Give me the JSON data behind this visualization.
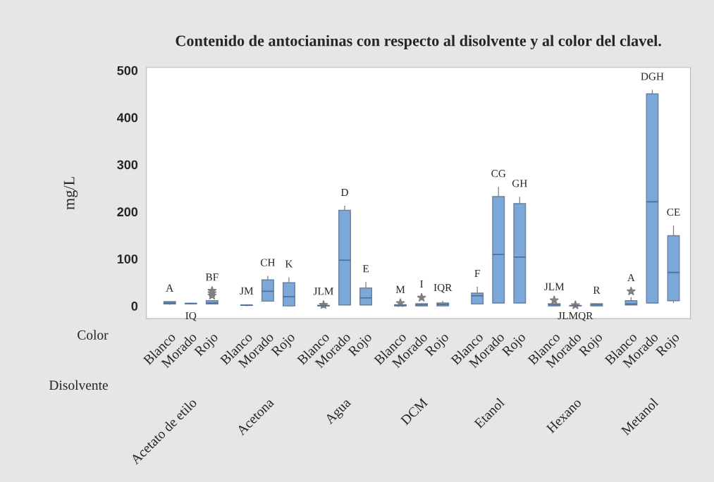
{
  "chart_data": {
    "type": "box",
    "title": "Contenido de antocianinas con respecto al disolvente y al color del clavel.",
    "ylabel": "mg/L",
    "categories": [
      "Blanco",
      "Morado",
      "Rojo",
      "Blanco",
      "Morado",
      "Rojo",
      "Blanco",
      "Morado",
      "Rojo",
      "Blanco",
      "Morado",
      "Rojo",
      "Blanco",
      "Morado",
      "Rojo",
      "Blanco",
      "Morado",
      "Rojo",
      "Blanco",
      "Morado",
      "Rojo"
    ],
    "color": "#7ba7d9",
    "boxes": [
      {
        "low": 3,
        "q1": 4,
        "median": 6,
        "q3": 9,
        "high": 9
      },
      {
        "low": 4,
        "q1": 4.5,
        "median": 5,
        "q3": 5.5,
        "high": 6
      },
      {
        "low": 4,
        "q1": 4,
        "median": 6,
        "q3": 11,
        "high": 11,
        "outliers": [
          22,
          27,
          32
        ]
      },
      {
        "low": 0,
        "q1": 1,
        "median": 1.5,
        "q3": 2,
        "high": 3
      },
      {
        "low": 10,
        "q1": 10,
        "median": 31,
        "q3": 55,
        "high": 63
      },
      {
        "low": 0,
        "q1": 0,
        "median": 19.5,
        "q3": 49,
        "high": 60
      },
      {
        "low": 0,
        "q1": 0,
        "median": 0.5,
        "q3": 1,
        "high": 1,
        "outliers": [
          2
        ]
      },
      {
        "low": 2,
        "q1": 2,
        "median": 97,
        "q3": 203,
        "high": 212
      },
      {
        "low": 2,
        "q1": 2,
        "median": 17,
        "q3": 38,
        "high": 50
      },
      {
        "low": 0,
        "q1": 0,
        "median": 1,
        "q3": 2.5,
        "high": 2.5,
        "outliers": [
          6
        ]
      },
      {
        "low": 0,
        "q1": 0,
        "median": 2,
        "q3": 4.5,
        "high": 4.5,
        "outliers": [
          17.5
        ]
      },
      {
        "low": 0,
        "q1": 0,
        "median": 3,
        "q3": 6,
        "high": 10
      },
      {
        "low": 4,
        "q1": 4,
        "median": 21.5,
        "q3": 27,
        "high": 40
      },
      {
        "low": 6,
        "q1": 6,
        "median": 109,
        "q3": 232,
        "high": 252
      },
      {
        "low": 6,
        "q1": 6,
        "median": 103.5,
        "q3": 217,
        "high": 231
      },
      {
        "low": 0,
        "q1": 0,
        "median": 2,
        "q3": 4.5,
        "high": 4.5,
        "outliers": [
          12
        ]
      },
      {
        "low": 0,
        "q1": 0,
        "median": 0.5,
        "q3": 1,
        "high": 1,
        "outliers": [
          1.5
        ]
      },
      {
        "low": 0,
        "q1": 0,
        "median": 2,
        "q3": 4.5,
        "high": 4.5
      },
      {
        "low": 2,
        "q1": 2,
        "median": 4,
        "q3": 11,
        "high": 18,
        "outliers": [
          31
        ]
      },
      {
        "low": 6,
        "q1": 6,
        "median": 221,
        "q3": 450,
        "high": 458
      },
      {
        "low": 7,
        "q1": 11,
        "median": 71,
        "q3": 149,
        "high": 170
      }
    ],
    "ylim": [
      -27,
      506
    ],
    "yticks": [
      0,
      100,
      200,
      300,
      400,
      500
    ],
    "grid": false,
    "value_labels": [
      "A",
      "IQ",
      "BF",
      "JM",
      "CH",
      "K",
      "JLM",
      "D",
      "E",
      "M",
      "I",
      "IQR",
      "F",
      "CG",
      "GH",
      "JLM",
      "JLMQR",
      "R",
      "A",
      "DGH",
      "CE"
    ],
    "annotations": [
      "Color",
      "Disolvente",
      "Acetato de etilo",
      "Acetona",
      "Agua",
      "DCM",
      "Etanol",
      "Hexano",
      "Metanol"
    ]
  }
}
